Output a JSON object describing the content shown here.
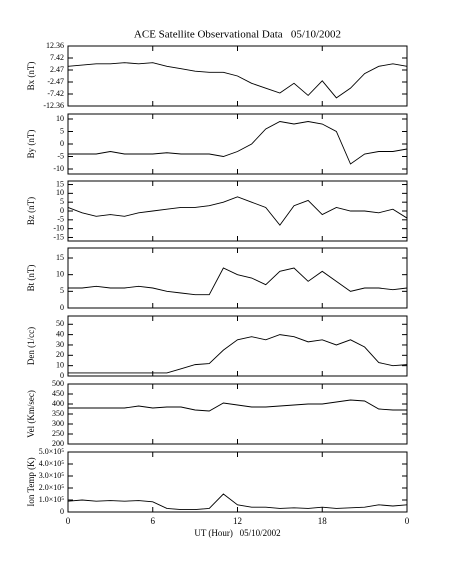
{
  "chart_data": [
    {
      "type": "line",
      "title": "ACE Satellite Observational Data   05/10/2002",
      "ylabel": "Bx (nT)",
      "x": [
        0,
        1,
        2,
        3,
        4,
        5,
        6,
        7,
        8,
        9,
        10,
        11,
        12,
        13,
        14,
        15,
        16,
        17,
        18,
        19,
        20,
        21,
        22,
        23,
        24
      ],
      "series": [
        {
          "color": "#000000",
          "values": [
            4,
            4.5,
            5,
            5,
            5.5,
            5,
            5.5,
            4,
            3,
            2,
            1.5,
            1.5,
            0,
            -3,
            -5,
            -7,
            -3,
            -8,
            -2,
            -9,
            -5,
            1,
            4,
            5,
            4
          ]
        }
      ],
      "xlim": [
        0,
        24
      ],
      "ylim": [
        -12.36,
        12.36
      ],
      "yticks": [
        -12.36,
        -7.42,
        -2.47,
        2.47,
        7.42,
        12.36
      ]
    },
    {
      "type": "line",
      "ylabel": "By (nT)",
      "x": [
        0,
        1,
        2,
        3,
        4,
        5,
        6,
        7,
        8,
        9,
        10,
        11,
        12,
        13,
        14,
        15,
        16,
        17,
        18,
        19,
        20,
        21,
        22,
        23,
        24
      ],
      "series": [
        {
          "color": "#000000",
          "values": [
            -4,
            -4,
            -4,
            -3,
            -4,
            -4,
            -4,
            -3.5,
            -4,
            -4,
            -4,
            -5,
            -3,
            0,
            6,
            9,
            8,
            9,
            8,
            5,
            -8,
            -4,
            -3,
            -3,
            -2
          ]
        }
      ],
      "xlim": [
        0,
        24
      ],
      "ylim": [
        -12,
        12
      ],
      "yticks": [
        -10,
        -5,
        0,
        5,
        10
      ]
    },
    {
      "type": "line",
      "ylabel": "Bz (nT)",
      "x": [
        0,
        1,
        2,
        3,
        4,
        5,
        6,
        7,
        8,
        9,
        10,
        11,
        12,
        13,
        14,
        15,
        16,
        17,
        18,
        19,
        20,
        21,
        22,
        23,
        24
      ],
      "series": [
        {
          "color": "#000000",
          "values": [
            2,
            -1,
            -3,
            -2,
            -3,
            -1,
            0,
            1,
            2,
            2,
            3,
            5,
            8,
            5,
            2,
            -8,
            3,
            6,
            -2,
            2,
            0,
            0,
            -1,
            1,
            -4
          ]
        }
      ],
      "xlim": [
        0,
        24
      ],
      "ylim": [
        -17,
        17
      ],
      "yticks": [
        -15,
        -10,
        -5,
        0,
        5,
        10,
        15
      ]
    },
    {
      "type": "line",
      "ylabel": "Bt (nT)",
      "x": [
        0,
        1,
        2,
        3,
        4,
        5,
        6,
        7,
        8,
        9,
        10,
        11,
        12,
        13,
        14,
        15,
        16,
        17,
        18,
        19,
        20,
        21,
        22,
        23,
        24
      ],
      "series": [
        {
          "color": "#000000",
          "values": [
            6,
            6,
            6.5,
            6,
            6,
            6.5,
            6,
            5,
            4.5,
            4,
            4,
            12,
            10,
            9,
            7,
            11,
            12,
            8,
            11,
            8,
            5,
            6,
            6,
            5.5,
            6
          ]
        }
      ],
      "xlim": [
        0,
        24
      ],
      "ylim": [
        0,
        18
      ],
      "yticks": [
        0,
        5,
        10,
        15
      ]
    },
    {
      "type": "line",
      "ylabel": "Den (1/cc)",
      "x": [
        0,
        1,
        2,
        3,
        4,
        5,
        6,
        7,
        8,
        9,
        10,
        11,
        12,
        13,
        14,
        15,
        16,
        17,
        18,
        19,
        20,
        21,
        22,
        23,
        24
      ],
      "series": [
        {
          "color": "#000000",
          "values": [
            3,
            3,
            3,
            3,
            3,
            3,
            3,
            3,
            7,
            11,
            12,
            25,
            35,
            38,
            35,
            40,
            38,
            33,
            35,
            30,
            35,
            28,
            13,
            10,
            11
          ]
        }
      ],
      "xlim": [
        0,
        24
      ],
      "ylim": [
        0,
        58
      ],
      "yticks": [
        0,
        10,
        20,
        30,
        40,
        50
      ]
    },
    {
      "type": "line",
      "ylabel": "Vel (Km/sec)",
      "x": [
        0,
        1,
        2,
        3,
        4,
        5,
        6,
        7,
        8,
        9,
        10,
        11,
        12,
        13,
        14,
        15,
        16,
        17,
        18,
        19,
        20,
        21,
        22,
        23,
        24
      ],
      "series": [
        {
          "color": "#000000",
          "values": [
            380,
            380,
            380,
            380,
            380,
            390,
            380,
            385,
            385,
            370,
            365,
            405,
            395,
            385,
            385,
            390,
            395,
            400,
            400,
            410,
            420,
            415,
            375,
            370,
            370
          ]
        }
      ],
      "xlim": [
        0,
        24
      ],
      "ylim": [
        200,
        500
      ],
      "yticks": [
        200,
        250,
        300,
        350,
        400,
        450,
        500
      ]
    },
    {
      "type": "line",
      "ylabel": "Ion Temp (K)",
      "xlabel": "UT (Hour)   05/10/2002",
      "x": [
        0,
        1,
        2,
        3,
        4,
        5,
        6,
        7,
        8,
        9,
        10,
        11,
        12,
        13,
        14,
        15,
        16,
        17,
        18,
        19,
        20,
        21,
        22,
        23,
        24
      ],
      "series": [
        {
          "color": "#000000",
          "values": [
            90000,
            100000,
            90000,
            95000,
            90000,
            95000,
            85000,
            30000,
            20000,
            20000,
            30000,
            150000,
            60000,
            40000,
            40000,
            30000,
            35000,
            30000,
            40000,
            30000,
            35000,
            40000,
            60000,
            50000,
            60000
          ]
        }
      ],
      "xlim": [
        0,
        24
      ],
      "xticks": [
        0,
        6,
        12,
        18,
        {
          "value": 24,
          "label": "0"
        }
      ],
      "ylim": [
        0,
        500000
      ],
      "yticks": [
        0,
        {
          "value": 100000,
          "label": "1.0×10⁵"
        },
        {
          "value": 200000,
          "label": "2.0×10⁵"
        },
        {
          "value": 300000,
          "label": "3.0×10⁵"
        },
        {
          "value": 400000,
          "label": "4.0×10⁵"
        },
        {
          "value": 500000,
          "label": "5.0×10⁵"
        }
      ]
    }
  ]
}
